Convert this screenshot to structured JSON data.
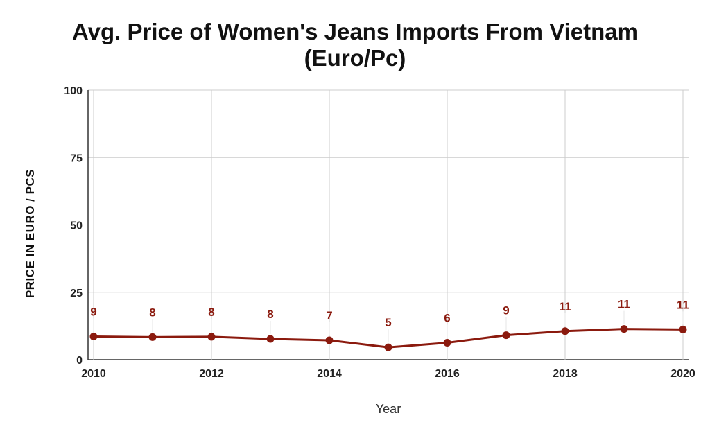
{
  "chart_data": {
    "type": "line",
    "title_line1": "Avg. Price of Women's Jeans Imports From Vietnam",
    "title_line2": "(Euro/Pc)",
    "xlabel": "Year",
    "ylabel": "PRICE IN EURO / PCS",
    "ylim": [
      0,
      100
    ],
    "yticks": [
      0,
      25,
      50,
      75,
      100
    ],
    "xlim": [
      2010,
      2020
    ],
    "xticks": [
      2010,
      2012,
      2014,
      2016,
      2018,
      2020
    ],
    "grid": true,
    "series": [
      {
        "x": [
          2010,
          2011,
          2012,
          2013,
          2014,
          2015,
          2016,
          2017,
          2018,
          2019,
          2020
        ],
        "values": [
          8.6,
          8.4,
          8.5,
          7.7,
          7.2,
          4.6,
          6.3,
          9.1,
          10.6,
          11.4,
          11.2
        ],
        "labels": [
          "9",
          "8",
          "8",
          "8",
          "7",
          "5",
          "6",
          "9",
          "11",
          "11",
          "11"
        ],
        "color": "#8b1a0e"
      }
    ]
  }
}
